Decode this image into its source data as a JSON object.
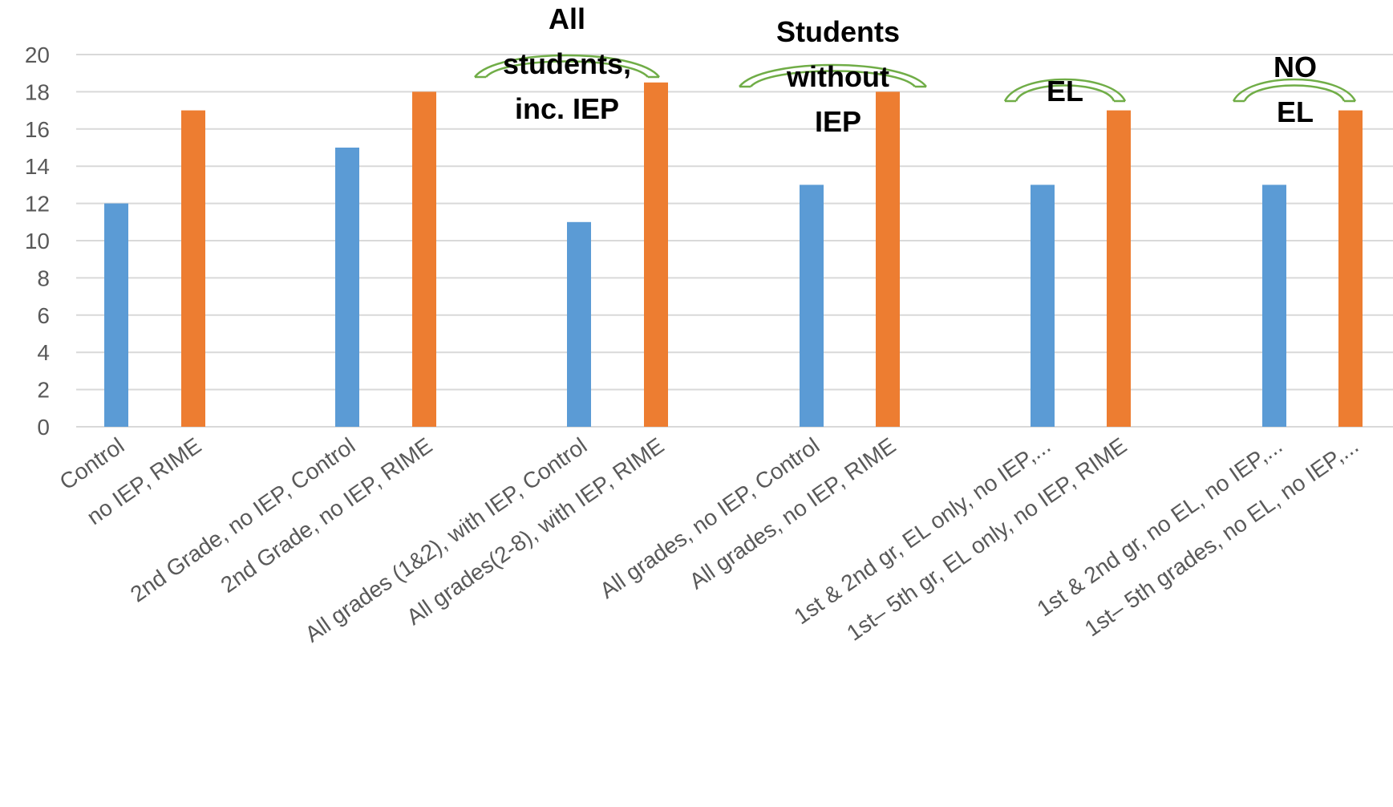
{
  "chart_data": {
    "type": "bar",
    "categories": [
      "Control",
      "no IEP, RIME",
      "2nd Grade, no IEP, Control",
      "2nd Grade, no IEP, RIME",
      "All grades (1&2), with IEP, Control",
      "All grades(2-8), with IEP, RIME",
      "All grades, no IEP, Control",
      "All grades, no IEP, RIME",
      "1st & 2nd gr, EL only, no IEP,...",
      "1st– 5th gr, EL only, no IEP, RIME",
      "1st & 2nd gr, no EL, no IEP,...",
      "1st– 5th grades, no EL, no IEP,..."
    ],
    "values": [
      12,
      17,
      15,
      18,
      11,
      18.5,
      13,
      18,
      13,
      17,
      13,
      17
    ],
    "bar_colors": [
      "#5b9bd5",
      "#ed7d31",
      "#5b9bd5",
      "#ed7d31",
      "#5b9bd5",
      "#ed7d31",
      "#5b9bd5",
      "#ed7d31",
      "#5b9bd5",
      "#ed7d31",
      "#5b9bd5",
      "#ed7d31"
    ],
    "ylim": [
      0,
      20
    ],
    "yticks": [
      0,
      2,
      4,
      6,
      8,
      10,
      12,
      14,
      16,
      18,
      20
    ],
    "grid": true,
    "title": "",
    "xlabel": "",
    "ylabel": "",
    "annotations": [
      {
        "lines": [
          "All",
          "students,",
          "inc. IEP"
        ],
        "group": 2
      },
      {
        "lines": [
          "Students",
          "without",
          "IEP"
        ],
        "group": 3
      },
      {
        "lines": [
          "EL"
        ],
        "group": 4
      },
      {
        "lines": [
          "NO",
          "EL"
        ],
        "group": 5
      }
    ],
    "annotation_color": "#70ad47"
  }
}
